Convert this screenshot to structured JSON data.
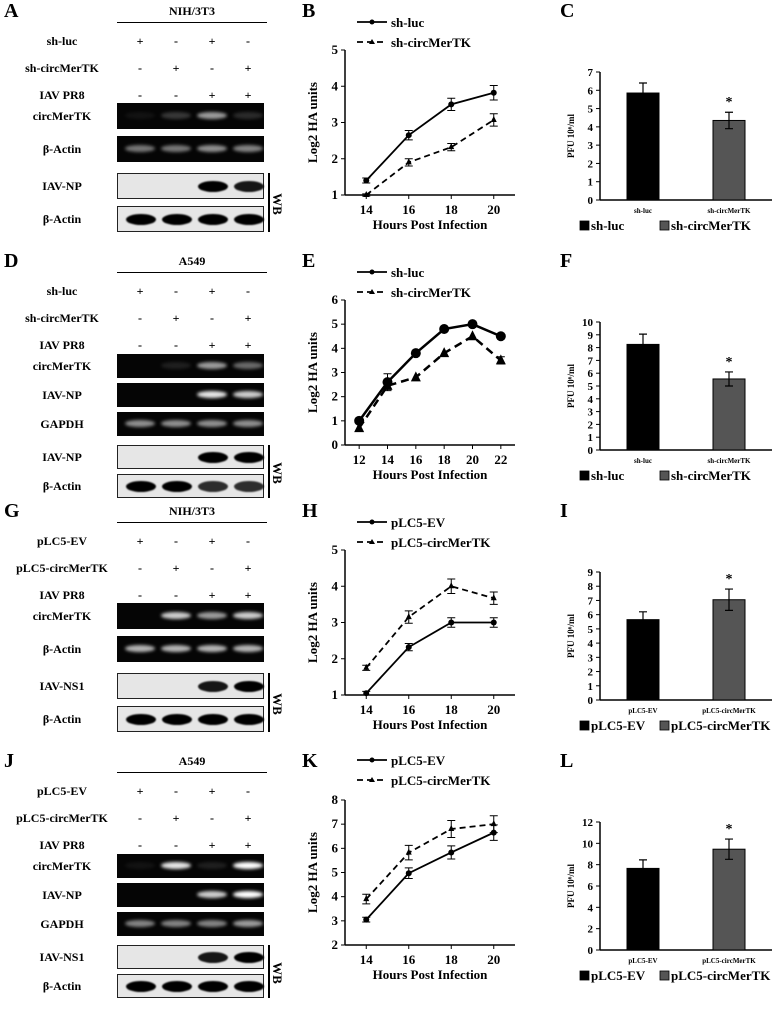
{
  "blots": [
    {
      "panel": "A",
      "cell_line": "NIH/3T3",
      "conditions": [
        {
          "label": "sh-luc",
          "signs": [
            "+",
            "-",
            "+",
            "-"
          ]
        },
        {
          "label": "sh-circMerTK",
          "signs": [
            "-",
            "+",
            "-",
            "+"
          ]
        },
        {
          "label": "IAV PR8",
          "signs": [
            "-",
            "-",
            "+",
            "+"
          ]
        }
      ],
      "bands": [
        {
          "label": "circMerTK",
          "type": "gel",
          "intensity": [
            0.05,
            0.2,
            0.6,
            0.15
          ]
        },
        {
          "label": "β-Actin",
          "type": "gel",
          "intensity": [
            0.45,
            0.45,
            0.55,
            0.5
          ]
        },
        {
          "label": "IAV-NP",
          "type": "wb",
          "intensity": [
            0,
            0,
            1,
            0.9
          ]
        },
        {
          "label": "β-Actin",
          "type": "wb",
          "intensity": [
            1,
            1,
            1,
            1
          ]
        }
      ],
      "wb_label": "WB"
    },
    {
      "panel": "D",
      "cell_line": "A549",
      "conditions": [
        {
          "label": "sh-luc",
          "signs": [
            "+",
            "-",
            "+",
            "-"
          ]
        },
        {
          "label": "sh-circMerTK",
          "signs": [
            "-",
            "+",
            "-",
            "+"
          ]
        },
        {
          "label": "IAV PR8",
          "signs": [
            "-",
            "-",
            "+",
            "+"
          ]
        }
      ],
      "bands": [
        {
          "label": "circMerTK",
          "type": "gel",
          "intensity": [
            0,
            0.1,
            0.6,
            0.4
          ]
        },
        {
          "label": "IAV-NP",
          "type": "gel",
          "intensity": [
            0,
            0,
            0.9,
            0.8
          ]
        },
        {
          "label": "GAPDH",
          "type": "gel",
          "intensity": [
            0.55,
            0.55,
            0.55,
            0.55
          ]
        },
        {
          "label": "IAV-NP",
          "type": "wb",
          "intensity": [
            0,
            0,
            1,
            1
          ]
        },
        {
          "label": "β-Actin",
          "type": "wb",
          "intensity": [
            1,
            1,
            0.8,
            0.8
          ]
        }
      ],
      "wb_label": "WB"
    },
    {
      "panel": "G",
      "cell_line": "NIH/3T3",
      "conditions": [
        {
          "label": "pLC5-EV",
          "signs": [
            "+",
            "-",
            "+",
            "-"
          ]
        },
        {
          "label": "pLC5-circMerTK",
          "signs": [
            "-",
            "+",
            "-",
            "+"
          ]
        },
        {
          "label": "IAV PR8",
          "signs": [
            "-",
            "-",
            "+",
            "+"
          ]
        }
      ],
      "bands": [
        {
          "label": "circMerTK",
          "type": "gel",
          "intensity": [
            0,
            0.8,
            0.6,
            0.8
          ]
        },
        {
          "label": "β-Actin",
          "type": "gel",
          "intensity": [
            0.7,
            0.7,
            0.7,
            0.7
          ]
        },
        {
          "label": "IAV-NS1",
          "type": "wb",
          "intensity": [
            0,
            0,
            0.9,
            1
          ]
        },
        {
          "label": "β-Actin",
          "type": "wb",
          "intensity": [
            1,
            1,
            1,
            1
          ]
        }
      ],
      "wb_label": "WB"
    },
    {
      "panel": "J",
      "cell_line": "A549",
      "conditions": [
        {
          "label": "pLC5-EV",
          "signs": [
            "+",
            "-",
            "+",
            "-"
          ]
        },
        {
          "label": "pLC5-circMerTK",
          "signs": [
            "-",
            "+",
            "-",
            "+"
          ]
        },
        {
          "label": "IAV PR8",
          "signs": [
            "-",
            "-",
            "+",
            "+"
          ]
        }
      ],
      "bands": [
        {
          "label": "circMerTK",
          "type": "gel",
          "intensity": [
            0.05,
            0.9,
            0.1,
            1
          ]
        },
        {
          "label": "IAV-NP",
          "type": "gel",
          "intensity": [
            0,
            0,
            0.8,
            1
          ]
        },
        {
          "label": "GAPDH",
          "type": "gel",
          "intensity": [
            0.5,
            0.5,
            0.5,
            0.6
          ]
        },
        {
          "label": "IAV-NS1",
          "type": "wb",
          "intensity": [
            0,
            0,
            0.9,
            1
          ]
        },
        {
          "label": "β-Actin",
          "type": "wb",
          "intensity": [
            1,
            1,
            1,
            1
          ]
        }
      ],
      "wb_label": "WB"
    }
  ],
  "chart_data": [
    {
      "panel": "B",
      "type": "line",
      "xlabel": "Hours Post Infection",
      "ylabel": "Log2 HA units",
      "x": [
        14,
        16,
        18,
        20
      ],
      "xlim": [
        13,
        21
      ],
      "ylim": [
        1,
        5
      ],
      "yticks": [
        1,
        2,
        3,
        4,
        5
      ],
      "legend": "top-left",
      "grid": false,
      "series": [
        {
          "name": "sh-luc",
          "style": "solid",
          "marker": "circle",
          "values": [
            1.4,
            2.65,
            3.5,
            3.82
          ],
          "errors": [
            0.07,
            0.13,
            0.17,
            0.2
          ]
        },
        {
          "name": "sh-circMerTK",
          "style": "dashed",
          "marker": "triangle",
          "values": [
            1.0,
            1.9,
            2.32,
            3.07
          ],
          "errors": [
            0.03,
            0.1,
            0.1,
            0.17
          ]
        }
      ]
    },
    {
      "panel": "C",
      "type": "bar",
      "ylabel": "PFU 10⁶/ml",
      "categories": [
        "sh-luc",
        "sh-circMerTK"
      ],
      "values": [
        5.85,
        4.35
      ],
      "errors": [
        0.55,
        0.45
      ],
      "significance": [
        "",
        "*"
      ],
      "ylim": [
        0,
        7
      ],
      "yticks": [
        0,
        1,
        2,
        3,
        4,
        5,
        6,
        7
      ],
      "colors": [
        "#000000",
        "#555555"
      ],
      "legend": "bottom",
      "legend_entries": [
        "sh-luc",
        "sh-circMerTK"
      ]
    },
    {
      "panel": "E",
      "type": "line",
      "xlabel": "Hours Post Infection",
      "ylabel": "Log2 HA units",
      "x": [
        12,
        14,
        16,
        18,
        20,
        22
      ],
      "xlim": [
        11,
        23
      ],
      "ylim": [
        0,
        6
      ],
      "yticks": [
        0,
        1,
        2,
        3,
        4,
        5,
        6
      ],
      "legend": "top-left",
      "grid": false,
      "series": [
        {
          "name": "sh-luc",
          "style": "solid",
          "marker": "circle",
          "values": [
            1.0,
            2.6,
            3.8,
            4.8,
            5.0,
            4.5
          ],
          "errors": [
            0,
            0.35,
            0,
            0,
            0,
            0
          ]
        },
        {
          "name": "sh-circMerTK",
          "style": "dashed",
          "marker": "triangle",
          "values": [
            0.7,
            2.45,
            2.8,
            3.8,
            4.5,
            3.5
          ],
          "errors": [
            0,
            0.15,
            0,
            0,
            0,
            0.15
          ]
        }
      ]
    },
    {
      "panel": "F",
      "type": "bar",
      "ylabel": "PFU 10⁶/ml",
      "categories": [
        "sh-luc",
        "sh-circMerTK"
      ],
      "values": [
        8.25,
        5.55
      ],
      "errors": [
        0.8,
        0.55
      ],
      "significance": [
        "",
        "*"
      ],
      "ylim": [
        0,
        10
      ],
      "yticks": [
        0,
        1,
        2,
        3,
        4,
        5,
        6,
        7,
        8,
        9,
        10
      ],
      "colors": [
        "#000000",
        "#555555"
      ],
      "legend": "bottom",
      "legend_entries": [
        "sh-luc",
        "sh-circMerTK"
      ]
    },
    {
      "panel": "H",
      "type": "line",
      "xlabel": "Hours Post Infection",
      "ylabel": "Log2 HA units",
      "x": [
        14,
        16,
        18,
        20
      ],
      "xlim": [
        13,
        21
      ],
      "ylim": [
        1,
        5
      ],
      "yticks": [
        1,
        2,
        3,
        4,
        5
      ],
      "legend": "top-left",
      "grid": false,
      "series": [
        {
          "name": "pLC5-EV",
          "style": "solid",
          "marker": "circle",
          "values": [
            1.05,
            2.32,
            3.0,
            3.0
          ],
          "errors": [
            0.05,
            0.1,
            0.13,
            0.13
          ]
        },
        {
          "name": "pLC5-circMerTK",
          "style": "dashed",
          "marker": "triangle",
          "values": [
            1.75,
            3.15,
            4.0,
            3.67
          ],
          "errors": [
            0.07,
            0.17,
            0.2,
            0.17
          ]
        }
      ]
    },
    {
      "panel": "I",
      "type": "bar",
      "ylabel": "PFU 10⁶/ml",
      "categories": [
        "pLC5-EV",
        "pLC5-circMerTK"
      ],
      "values": [
        5.65,
        7.05
      ],
      "errors": [
        0.55,
        0.75
      ],
      "significance": [
        "",
        "*"
      ],
      "ylim": [
        0,
        9
      ],
      "yticks": [
        0,
        1,
        2,
        3,
        4,
        5,
        6,
        7,
        8,
        9
      ],
      "colors": [
        "#000000",
        "#555555"
      ],
      "legend": "bottom",
      "legend_entries": [
        "pLC5-EV",
        "pLC5-circMerTK"
      ]
    },
    {
      "panel": "K",
      "type": "line",
      "xlabel": "Hours Post Infection",
      "ylabel": "Log2 HA units",
      "x": [
        14,
        16,
        18,
        20
      ],
      "xlim": [
        13,
        21
      ],
      "ylim": [
        2,
        8
      ],
      "yticks": [
        2,
        3,
        4,
        5,
        6,
        7,
        8
      ],
      "legend": "top-left",
      "grid": false,
      "series": [
        {
          "name": "pLC5-EV",
          "style": "solid",
          "marker": "circle",
          "values": [
            3.05,
            4.97,
            5.83,
            6.65
          ],
          "errors": [
            0.1,
            0.22,
            0.27,
            0.32
          ]
        },
        {
          "name": "pLC5-circMerTK",
          "style": "dashed",
          "marker": "triangle",
          "values": [
            3.9,
            5.82,
            6.8,
            7.0
          ],
          "errors": [
            0.2,
            0.3,
            0.35,
            0.35
          ]
        }
      ]
    },
    {
      "panel": "L",
      "type": "bar",
      "ylabel": "PFU 10⁶/ml",
      "categories": [
        "pLC5-EV",
        "pLC5-circMerTK"
      ],
      "values": [
        7.65,
        9.45
      ],
      "errors": [
        0.8,
        0.95
      ],
      "significance": [
        "",
        "*"
      ],
      "ylim": [
        0,
        12
      ],
      "yticks": [
        0,
        2,
        4,
        6,
        8,
        10,
        12
      ],
      "colors": [
        "#000000",
        "#555555"
      ],
      "legend": "bottom",
      "legend_entries": [
        "pLC5-EV",
        "pLC5-circMerTK"
      ]
    }
  ]
}
